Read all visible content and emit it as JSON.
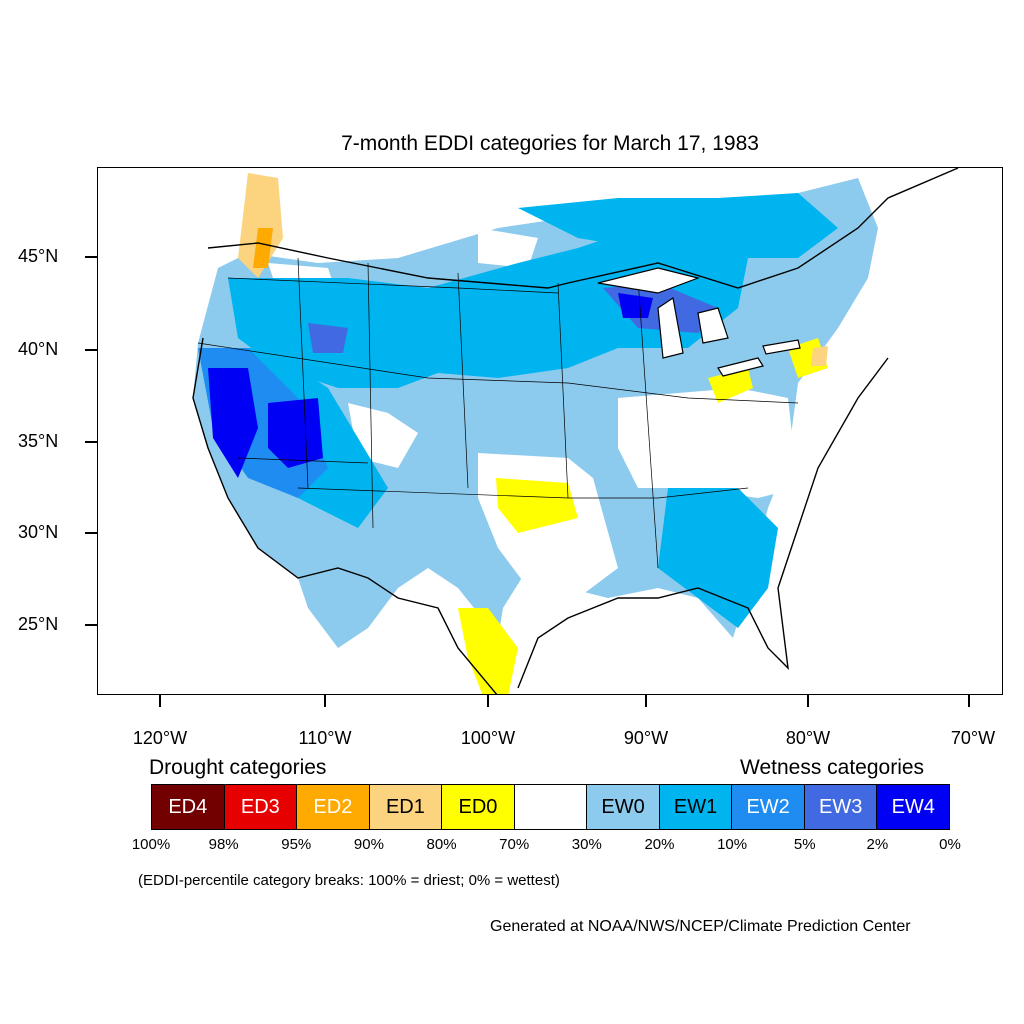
{
  "title": "7-month EDDI categories for March 17, 1983",
  "map": {
    "lat_labels": [
      "45°N",
      "40°N",
      "35°N",
      "30°N",
      "25°N"
    ],
    "lon_labels": [
      "120°W",
      "110°W",
      "100°W",
      "90°W",
      "80°W",
      "70°W"
    ]
  },
  "legend": {
    "drought_heading": "Drought categories",
    "wetness_heading": "Wetness categories",
    "categories": [
      {
        "label": "ED4",
        "color": "#730000",
        "text_color": "#ffffff"
      },
      {
        "label": "ED3",
        "color": "#e60000",
        "text_color": "#ffffff"
      },
      {
        "label": "ED2",
        "color": "#ffaa00",
        "text_color": "#ffffff"
      },
      {
        "label": "ED1",
        "color": "#fcd37f",
        "text_color": "#000000"
      },
      {
        "label": "ED0",
        "color": "#ffff00",
        "text_color": "#000000"
      },
      {
        "label": "",
        "color": "#ffffff",
        "text_color": "#000000"
      },
      {
        "label": "EW0",
        "color": "#8ccbed",
        "text_color": "#000000"
      },
      {
        "label": "EW1",
        "color": "#00b4f0",
        "text_color": "#000000"
      },
      {
        "label": "EW2",
        "color": "#1e8cf0",
        "text_color": "#ffffff"
      },
      {
        "label": "EW3",
        "color": "#4169e1",
        "text_color": "#ffffff"
      },
      {
        "label": "EW4",
        "color": "#0000f5",
        "text_color": "#ffffff"
      }
    ],
    "percentiles": [
      "100%",
      "98%",
      "95%",
      "90%",
      "80%",
      "70%",
      "30%",
      "20%",
      "10%",
      "5%",
      "2%",
      "0%"
    ]
  },
  "note": "(EDDI-percentile category breaks: 100% = driest; 0% = wettest)",
  "credit": "Generated at NOAA/NWS/NCEP/Climate Prediction Center"
}
